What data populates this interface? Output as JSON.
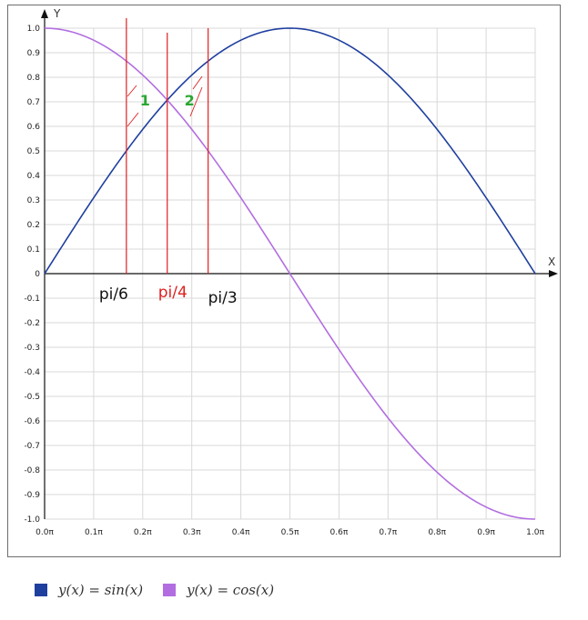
{
  "chart_data": {
    "type": "line",
    "xlabel": "X",
    "ylabel": "Y",
    "xlim": [
      0,
      1
    ],
    "ylim": [
      -1,
      1
    ],
    "grid": true,
    "legend_position": "bottom-left",
    "xticks": [
      "0.0π",
      "0.1π",
      "0.2π",
      "0.3π",
      "0.4π",
      "0.5π",
      "0.6π",
      "0.7π",
      "0.8π",
      "0.9π",
      "1.0π"
    ],
    "yticks": [
      "1.0",
      "0.9",
      "0.8",
      "0.7",
      "0.6",
      "0.5",
      "0.4",
      "0.3",
      "0.2",
      "0.1",
      "0",
      "-0.1",
      "-0.2",
      "-0.3",
      "-0.4",
      "-0.5",
      "-0.6",
      "-0.7",
      "-0.8",
      "-0.9",
      "-1.0"
    ],
    "series": [
      {
        "name": "y(x) = sin(x)",
        "color": "#1f3f9f",
        "x": [
          0,
          0.05,
          0.1,
          0.15,
          0.2,
          0.25,
          0.3,
          0.35,
          0.4,
          0.45,
          0.5,
          0.55,
          0.6,
          0.65,
          0.7,
          0.75,
          0.8,
          0.85,
          0.9,
          0.95,
          1.0
        ],
        "y": [
          0,
          0.156,
          0.309,
          0.454,
          0.588,
          0.707,
          0.809,
          0.891,
          0.951,
          0.988,
          1.0,
          0.988,
          0.951,
          0.891,
          0.809,
          0.707,
          0.588,
          0.454,
          0.309,
          0.156,
          0
        ]
      },
      {
        "name": "y(x) = cos(x)",
        "color": "#b26ee0",
        "x": [
          0,
          0.05,
          0.1,
          0.15,
          0.2,
          0.25,
          0.3,
          0.35,
          0.4,
          0.45,
          0.5,
          0.55,
          0.6,
          0.65,
          0.7,
          0.75,
          0.8,
          0.85,
          0.9,
          0.95,
          1.0
        ],
        "y": [
          1.0,
          0.988,
          0.951,
          0.891,
          0.809,
          0.707,
          0.588,
          0.454,
          0.309,
          0.156,
          0,
          -0.156,
          -0.309,
          -0.454,
          -0.588,
          -0.707,
          -0.809,
          -0.891,
          -0.951,
          -0.988,
          -1.0
        ]
      }
    ],
    "annotations": {
      "vertical_lines": [
        {
          "x": 0.1667,
          "label": "pi/6",
          "label_color": "#111111"
        },
        {
          "x": 0.25,
          "label": "pi/4",
          "label_color": "#e02020"
        },
        {
          "x": 0.3333,
          "label": "pi/3",
          "label_color": "#111111"
        }
      ],
      "regions": [
        {
          "label": "1",
          "color": "#2aa832"
        },
        {
          "label": "2",
          "color": "#2aa832"
        }
      ],
      "line_color": "#e02020"
    }
  }
}
